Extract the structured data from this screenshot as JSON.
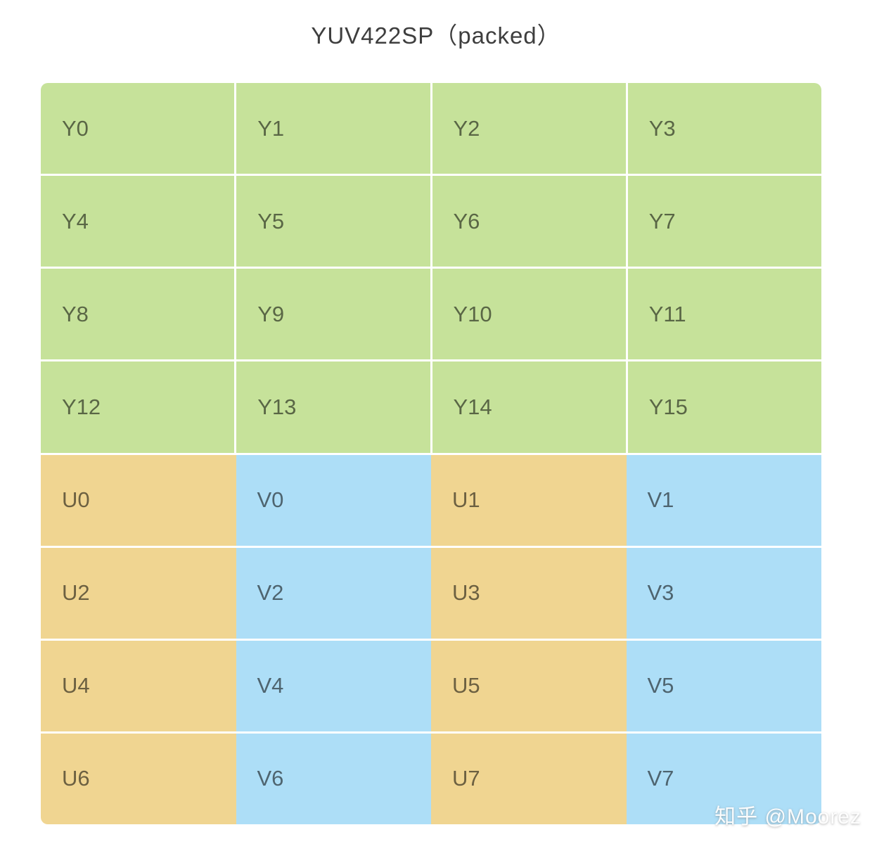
{
  "title": "YUV422SP（packed）",
  "watermark": "知乎 @Moorez",
  "colors": {
    "y_plane": "#c6e29a",
    "u_plane": "#f0d591",
    "v_plane": "#addef7"
  },
  "grid": {
    "rows": [
      {
        "region": "y",
        "cells": [
          {
            "label": "Y0",
            "plane": "y"
          },
          {
            "label": "Y1",
            "plane": "y"
          },
          {
            "label": "Y2",
            "plane": "y"
          },
          {
            "label": "Y3",
            "plane": "y"
          }
        ]
      },
      {
        "region": "y",
        "cells": [
          {
            "label": "Y4",
            "plane": "y"
          },
          {
            "label": "Y5",
            "plane": "y"
          },
          {
            "label": "Y6",
            "plane": "y"
          },
          {
            "label": "Y7",
            "plane": "y"
          }
        ]
      },
      {
        "region": "y",
        "cells": [
          {
            "label": "Y8",
            "plane": "y"
          },
          {
            "label": "Y9",
            "plane": "y"
          },
          {
            "label": "Y10",
            "plane": "y"
          },
          {
            "label": "Y11",
            "plane": "y"
          }
        ]
      },
      {
        "region": "y",
        "cells": [
          {
            "label": "Y12",
            "plane": "y"
          },
          {
            "label": "Y13",
            "plane": "y"
          },
          {
            "label": "Y14",
            "plane": "y"
          },
          {
            "label": "Y15",
            "plane": "y"
          }
        ]
      },
      {
        "region": "uv",
        "cells": [
          {
            "label": "U0",
            "plane": "u"
          },
          {
            "label": "V0",
            "plane": "v"
          },
          {
            "label": "U1",
            "plane": "u"
          },
          {
            "label": "V1",
            "plane": "v"
          }
        ]
      },
      {
        "region": "uv",
        "cells": [
          {
            "label": "U2",
            "plane": "u"
          },
          {
            "label": "V2",
            "plane": "v"
          },
          {
            "label": "U3",
            "plane": "u"
          },
          {
            "label": "V3",
            "plane": "v"
          }
        ]
      },
      {
        "region": "uv",
        "cells": [
          {
            "label": "U4",
            "plane": "u"
          },
          {
            "label": "V4",
            "plane": "v"
          },
          {
            "label": "U5",
            "plane": "u"
          },
          {
            "label": "V5",
            "plane": "v"
          }
        ]
      },
      {
        "region": "uv",
        "cells": [
          {
            "label": "U6",
            "plane": "u"
          },
          {
            "label": "V6",
            "plane": "v"
          },
          {
            "label": "U7",
            "plane": "u"
          },
          {
            "label": "V7",
            "plane": "v"
          }
        ]
      }
    ]
  }
}
